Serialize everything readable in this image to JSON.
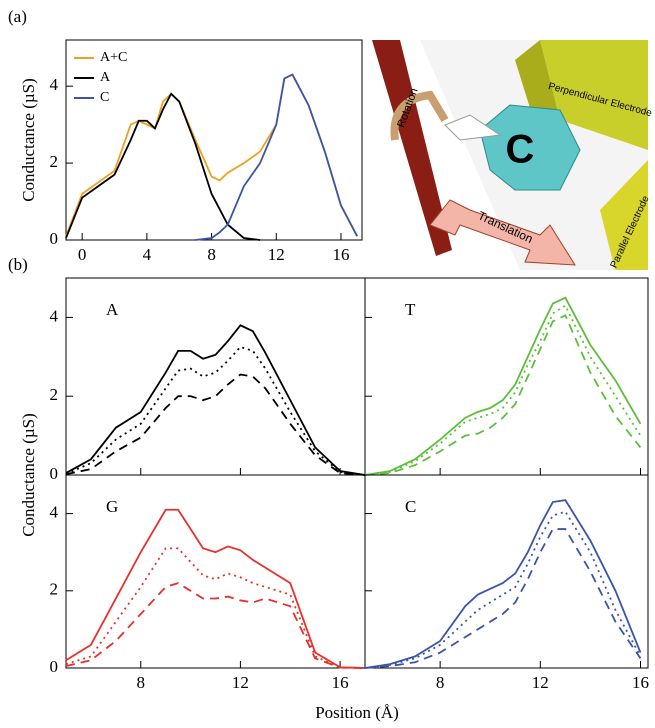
{
  "panel_labels": [
    "(a)",
    "(b)"
  ],
  "figure": {
    "xlabel": "Position (Å)",
    "ylabel": "Conductance (µS)"
  },
  "illustration": {
    "rotation": "Rotation",
    "base": "C",
    "perpendicular": "Perpendicular Electrode",
    "parallel": "Parallel Electrode",
    "translation": "Translation"
  },
  "chart_data": [
    {
      "type": "line",
      "ylabel": "Conductance (µS)",
      "legend": "upper left",
      "x": [
        -1,
        0,
        1,
        2,
        3,
        3.5,
        4,
        4.5,
        5,
        5.5,
        6,
        7,
        8,
        8.5,
        9,
        10,
        11,
        12,
        12.5,
        13,
        14,
        15,
        16,
        17
      ],
      "series": [
        {
          "name": "A+C",
          "color": "#f0a020",
          "style": "solid",
          "values": [
            0.1,
            1.2,
            1.5,
            1.8,
            3.0,
            3.1,
            3.0,
            2.9,
            3.6,
            3.8,
            3.6,
            2.6,
            1.65,
            1.55,
            1.75,
            2.0,
            2.3,
            3.0,
            4.2,
            4.3,
            3.5,
            2.3,
            0.9,
            0.1
          ]
        },
        {
          "name": "A",
          "color": "#000000",
          "style": "solid",
          "values": [
            0.05,
            1.1,
            1.4,
            1.7,
            2.6,
            3.1,
            3.1,
            2.9,
            3.4,
            3.8,
            3.6,
            2.5,
            1.2,
            0.8,
            0.4,
            0.05,
            0,
            null,
            null,
            null,
            null,
            null,
            null,
            null
          ]
        },
        {
          "name": "C",
          "color": "#3a55a8",
          "style": "solid",
          "values": [
            null,
            null,
            null,
            null,
            null,
            null,
            null,
            null,
            null,
            null,
            null,
            0,
            0.05,
            0.2,
            0.4,
            1.4,
            2.0,
            3.0,
            4.2,
            4.3,
            3.5,
            2.3,
            0.9,
            0.1
          ]
        }
      ],
      "xlim": [
        -1,
        17.3
      ],
      "ylim": [
        0,
        5.2
      ],
      "xticks": [
        0,
        4,
        8,
        12,
        16
      ],
      "yticks": [
        0,
        2,
        4
      ]
    },
    {
      "type": "line",
      "label": "A",
      "xtick_labels": false,
      "ytick_labels": true,
      "x": [
        5,
        6,
        7,
        8,
        9,
        9.5,
        10,
        10.5,
        11,
        11.5,
        12,
        12.5,
        13,
        14,
        15,
        16,
        17
      ],
      "series": [
        {
          "color": "#000000",
          "style": "solid",
          "values": [
            0.05,
            0.4,
            1.2,
            1.6,
            2.6,
            3.15,
            3.15,
            2.95,
            3.05,
            3.4,
            3.8,
            3.65,
            3.1,
            1.9,
            0.7,
            0.1,
            0
          ]
        },
        {
          "color": "#000000",
          "style": "dotted",
          "values": [
            0.03,
            0.3,
            0.9,
            1.3,
            2.2,
            2.65,
            2.7,
            2.5,
            2.6,
            2.9,
            3.25,
            3.15,
            2.7,
            1.6,
            0.6,
            0.08,
            0
          ]
        },
        {
          "color": "#000000",
          "style": "dashed",
          "values": [
            0.02,
            0.15,
            0.6,
            0.95,
            1.7,
            2.0,
            2.0,
            1.9,
            2.0,
            2.3,
            2.55,
            2.5,
            2.2,
            1.3,
            0.5,
            0.05,
            0
          ]
        }
      ],
      "xlim": [
        5,
        17
      ],
      "ylim": [
        0,
        5
      ],
      "xticks": [
        8,
        12,
        16
      ],
      "yticks": [
        0,
        2,
        4
      ]
    },
    {
      "type": "line",
      "label": "T",
      "xtick_labels": false,
      "ytick_labels": false,
      "x": [
        5,
        6,
        7,
        8,
        9,
        9.5,
        10,
        10.5,
        11,
        11.5,
        12,
        12.5,
        13,
        14,
        15,
        16
      ],
      "series": [
        {
          "color": "#5cbf3a",
          "style": "solid",
          "values": [
            0,
            0.1,
            0.4,
            0.9,
            1.45,
            1.6,
            1.7,
            1.9,
            2.3,
            3.0,
            3.7,
            4.35,
            4.5,
            3.3,
            2.4,
            1.3
          ]
        },
        {
          "color": "#5cbf3a",
          "style": "dotted",
          "values": [
            0,
            0.08,
            0.35,
            0.8,
            1.35,
            1.45,
            1.55,
            1.7,
            2.1,
            2.8,
            3.4,
            4.1,
            4.3,
            3.0,
            2.0,
            1.0
          ]
        },
        {
          "color": "#5cbf3a",
          "style": "dashed",
          "values": [
            0,
            0.05,
            0.25,
            0.6,
            1.0,
            1.05,
            1.2,
            1.45,
            1.8,
            2.5,
            3.2,
            3.9,
            4.05,
            2.6,
            1.5,
            0.7
          ]
        }
      ],
      "xlim": [
        5,
        16.3
      ],
      "ylim": [
        0,
        5
      ],
      "xticks": [
        8,
        12,
        16
      ],
      "yticks": [
        0,
        2,
        4
      ]
    },
    {
      "type": "line",
      "label": "G",
      "xtick_labels": true,
      "ytick_labels": true,
      "x": [
        5,
        6,
        7,
        8,
        9,
        9.5,
        10,
        10.5,
        11,
        11.5,
        12,
        12.5,
        13,
        14,
        15,
        16,
        17
      ],
      "series": [
        {
          "color": "#e8302a",
          "style": "solid",
          "values": [
            0.2,
            0.6,
            1.8,
            3.0,
            4.1,
            4.1,
            3.6,
            3.1,
            3.0,
            3.15,
            3.05,
            2.8,
            2.6,
            2.2,
            0.4,
            0.02,
            0
          ]
        },
        {
          "color": "#e8302a",
          "style": "dotted",
          "values": [
            0.1,
            0.3,
            1.2,
            2.1,
            3.1,
            3.1,
            2.75,
            2.4,
            2.3,
            2.45,
            2.35,
            2.2,
            2.1,
            1.9,
            0.3,
            0.01,
            0
          ]
        },
        {
          "color": "#e8302a",
          "style": "dashed",
          "values": [
            0.05,
            0.2,
            0.7,
            1.4,
            2.1,
            2.2,
            2.0,
            1.8,
            1.8,
            1.85,
            1.75,
            1.7,
            1.8,
            1.6,
            0.25,
            0.01,
            0
          ]
        }
      ],
      "xlim": [
        5,
        17
      ],
      "ylim": [
        0,
        5
      ],
      "xticks": [
        8,
        12,
        16
      ],
      "yticks": [
        0,
        2,
        4
      ]
    },
    {
      "type": "line",
      "label": "C",
      "xtick_labels": true,
      "ytick_labels": false,
      "x": [
        5,
        6,
        7,
        8,
        9,
        9.5,
        10,
        10.5,
        11,
        11.5,
        12,
        12.5,
        13,
        14,
        15,
        16
      ],
      "series": [
        {
          "color": "#3a55a8",
          "style": "solid",
          "values": [
            0,
            0.1,
            0.3,
            0.7,
            1.6,
            1.9,
            2.05,
            2.2,
            2.45,
            3.0,
            3.7,
            4.3,
            4.35,
            3.3,
            2.0,
            0.4
          ]
        },
        {
          "color": "#3a55a8",
          "style": "dotted",
          "values": [
            0,
            0.08,
            0.25,
            0.6,
            1.2,
            1.5,
            1.7,
            1.9,
            2.1,
            2.7,
            3.4,
            3.95,
            4.05,
            3.0,
            1.5,
            0.3
          ]
        },
        {
          "color": "#3a55a8",
          "style": "dashed",
          "values": [
            0,
            0.05,
            0.15,
            0.4,
            0.8,
            1.0,
            1.2,
            1.4,
            1.7,
            2.3,
            3.0,
            3.6,
            3.6,
            2.5,
            1.2,
            0.25
          ]
        }
      ],
      "xlim": [
        5,
        16.3
      ],
      "ylim": [
        0,
        5
      ],
      "xticks": [
        8,
        12,
        16
      ],
      "yticks": [
        0,
        2,
        4
      ]
    }
  ]
}
